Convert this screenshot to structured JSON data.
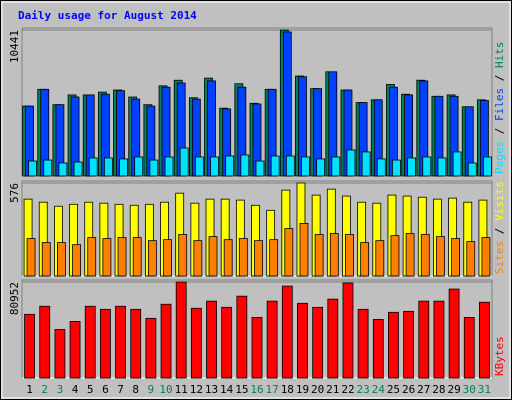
{
  "title": "Daily usage for August 2014",
  "title_color": "#0000ff",
  "legend_separator": "/",
  "chart_data": [
    {
      "type": "bar",
      "categories": [
        "1",
        "2",
        "3",
        "4",
        "5",
        "6",
        "7",
        "8",
        "9",
        "10",
        "11",
        "12",
        "13",
        "14",
        "15",
        "16",
        "17",
        "18",
        "19",
        "20",
        "21",
        "22",
        "23",
        "24",
        "25",
        "26",
        "27",
        "28",
        "29",
        "30",
        "31"
      ],
      "ylim": [
        0,
        10441
      ],
      "yticks": [
        10441
      ],
      "grid": true,
      "series": [
        {
          "name": "Hits",
          "color": "#00805c",
          "values": [
            5000,
            6200,
            5100,
            5800,
            5800,
            6000,
            6150,
            5650,
            5100,
            6450,
            6850,
            5600,
            7000,
            4850,
            6600,
            5200,
            6200,
            10441,
            7150,
            6250,
            7450,
            6150,
            5250,
            5450,
            6550,
            5850,
            6850,
            5700,
            5800,
            4950,
            5450
          ]
        },
        {
          "name": "Files",
          "color": "#0040ff",
          "values": [
            5000,
            6200,
            5100,
            5650,
            5800,
            5850,
            6100,
            5500,
            5000,
            6350,
            6650,
            5500,
            6800,
            4800,
            6350,
            5150,
            6200,
            10300,
            7100,
            6250,
            7450,
            6150,
            5250,
            5450,
            6350,
            5800,
            6800,
            5700,
            5700,
            4950,
            5400
          ]
        },
        {
          "name": "Pages",
          "color": "#00e0ff",
          "values": [
            1070,
            1140,
            930,
            1000,
            1290,
            1290,
            1220,
            1360,
            1140,
            1360,
            2000,
            1360,
            1360,
            1430,
            1500,
            1070,
            1430,
            1430,
            1360,
            1220,
            1360,
            1860,
            1720,
            1220,
            1140,
            1290,
            1360,
            1290,
            1720,
            930,
            1360
          ]
        }
      ]
    },
    {
      "type": "bar",
      "categories": [
        "1",
        "2",
        "3",
        "4",
        "5",
        "6",
        "7",
        "8",
        "9",
        "10",
        "11",
        "12",
        "13",
        "14",
        "15",
        "16",
        "17",
        "18",
        "19",
        "20",
        "21",
        "22",
        "23",
        "24",
        "25",
        "26",
        "27",
        "28",
        "29",
        "30",
        "31"
      ],
      "ylim": [
        0,
        576
      ],
      "yticks": [
        576
      ],
      "grid": true,
      "series": [
        {
          "name": "Visits",
          "color": "#ffff00",
          "values": [
            476,
            457,
            432,
            444,
            457,
            451,
            444,
            438,
            444,
            457,
            513,
            451,
            476,
            476,
            470,
            438,
            407,
            532,
            576,
            501,
            538,
            495,
            457,
            451,
            501,
            495,
            488,
            476,
            482,
            457,
            470
          ]
        },
        {
          "name": "Sites",
          "color": "#ff8000",
          "values": [
            232,
            207,
            207,
            194,
            238,
            232,
            238,
            238,
            219,
            225,
            257,
            219,
            244,
            225,
            232,
            219,
            225,
            294,
            326,
            257,
            263,
            257,
            207,
            219,
            250,
            263,
            257,
            244,
            232,
            213,
            238
          ]
        }
      ]
    },
    {
      "type": "bar",
      "categories": [
        "1",
        "2",
        "3",
        "4",
        "5",
        "6",
        "7",
        "8",
        "9",
        "10",
        "11",
        "12",
        "13",
        "14",
        "15",
        "16",
        "17",
        "18",
        "19",
        "20",
        "21",
        "22",
        "23",
        "24",
        "25",
        "26",
        "27",
        "28",
        "29",
        "30",
        "31"
      ],
      "label_colors": [
        "#000000",
        "#00805c",
        "#00805c",
        "#000000",
        "#000000",
        "#000000",
        "#000000",
        "#000000",
        "#00805c",
        "#00805c",
        "#000000",
        "#000000",
        "#000000",
        "#000000",
        "#000000",
        "#00805c",
        "#00805c",
        "#000000",
        "#000000",
        "#000000",
        "#000000",
        "#000000",
        "#00805c",
        "#00805c",
        "#000000",
        "#000000",
        "#000000",
        "#000000",
        "#000000",
        "#00805c",
        "#00805c"
      ],
      "ylim": [
        0,
        80952
      ],
      "yticks": [
        80952
      ],
      "grid": true,
      "series": [
        {
          "name": "KBytes",
          "color": "#ff0000",
          "values": [
            53700,
            60500,
            40900,
            47700,
            60500,
            57900,
            60500,
            57900,
            50300,
            62200,
            80952,
            58800,
            64800,
            59600,
            69000,
            51100,
            64800,
            77500,
            63000,
            59600,
            66500,
            80100,
            57900,
            49400,
            55400,
            56200,
            64800,
            64800,
            75000,
            51100,
            63900
          ]
        }
      ]
    }
  ]
}
